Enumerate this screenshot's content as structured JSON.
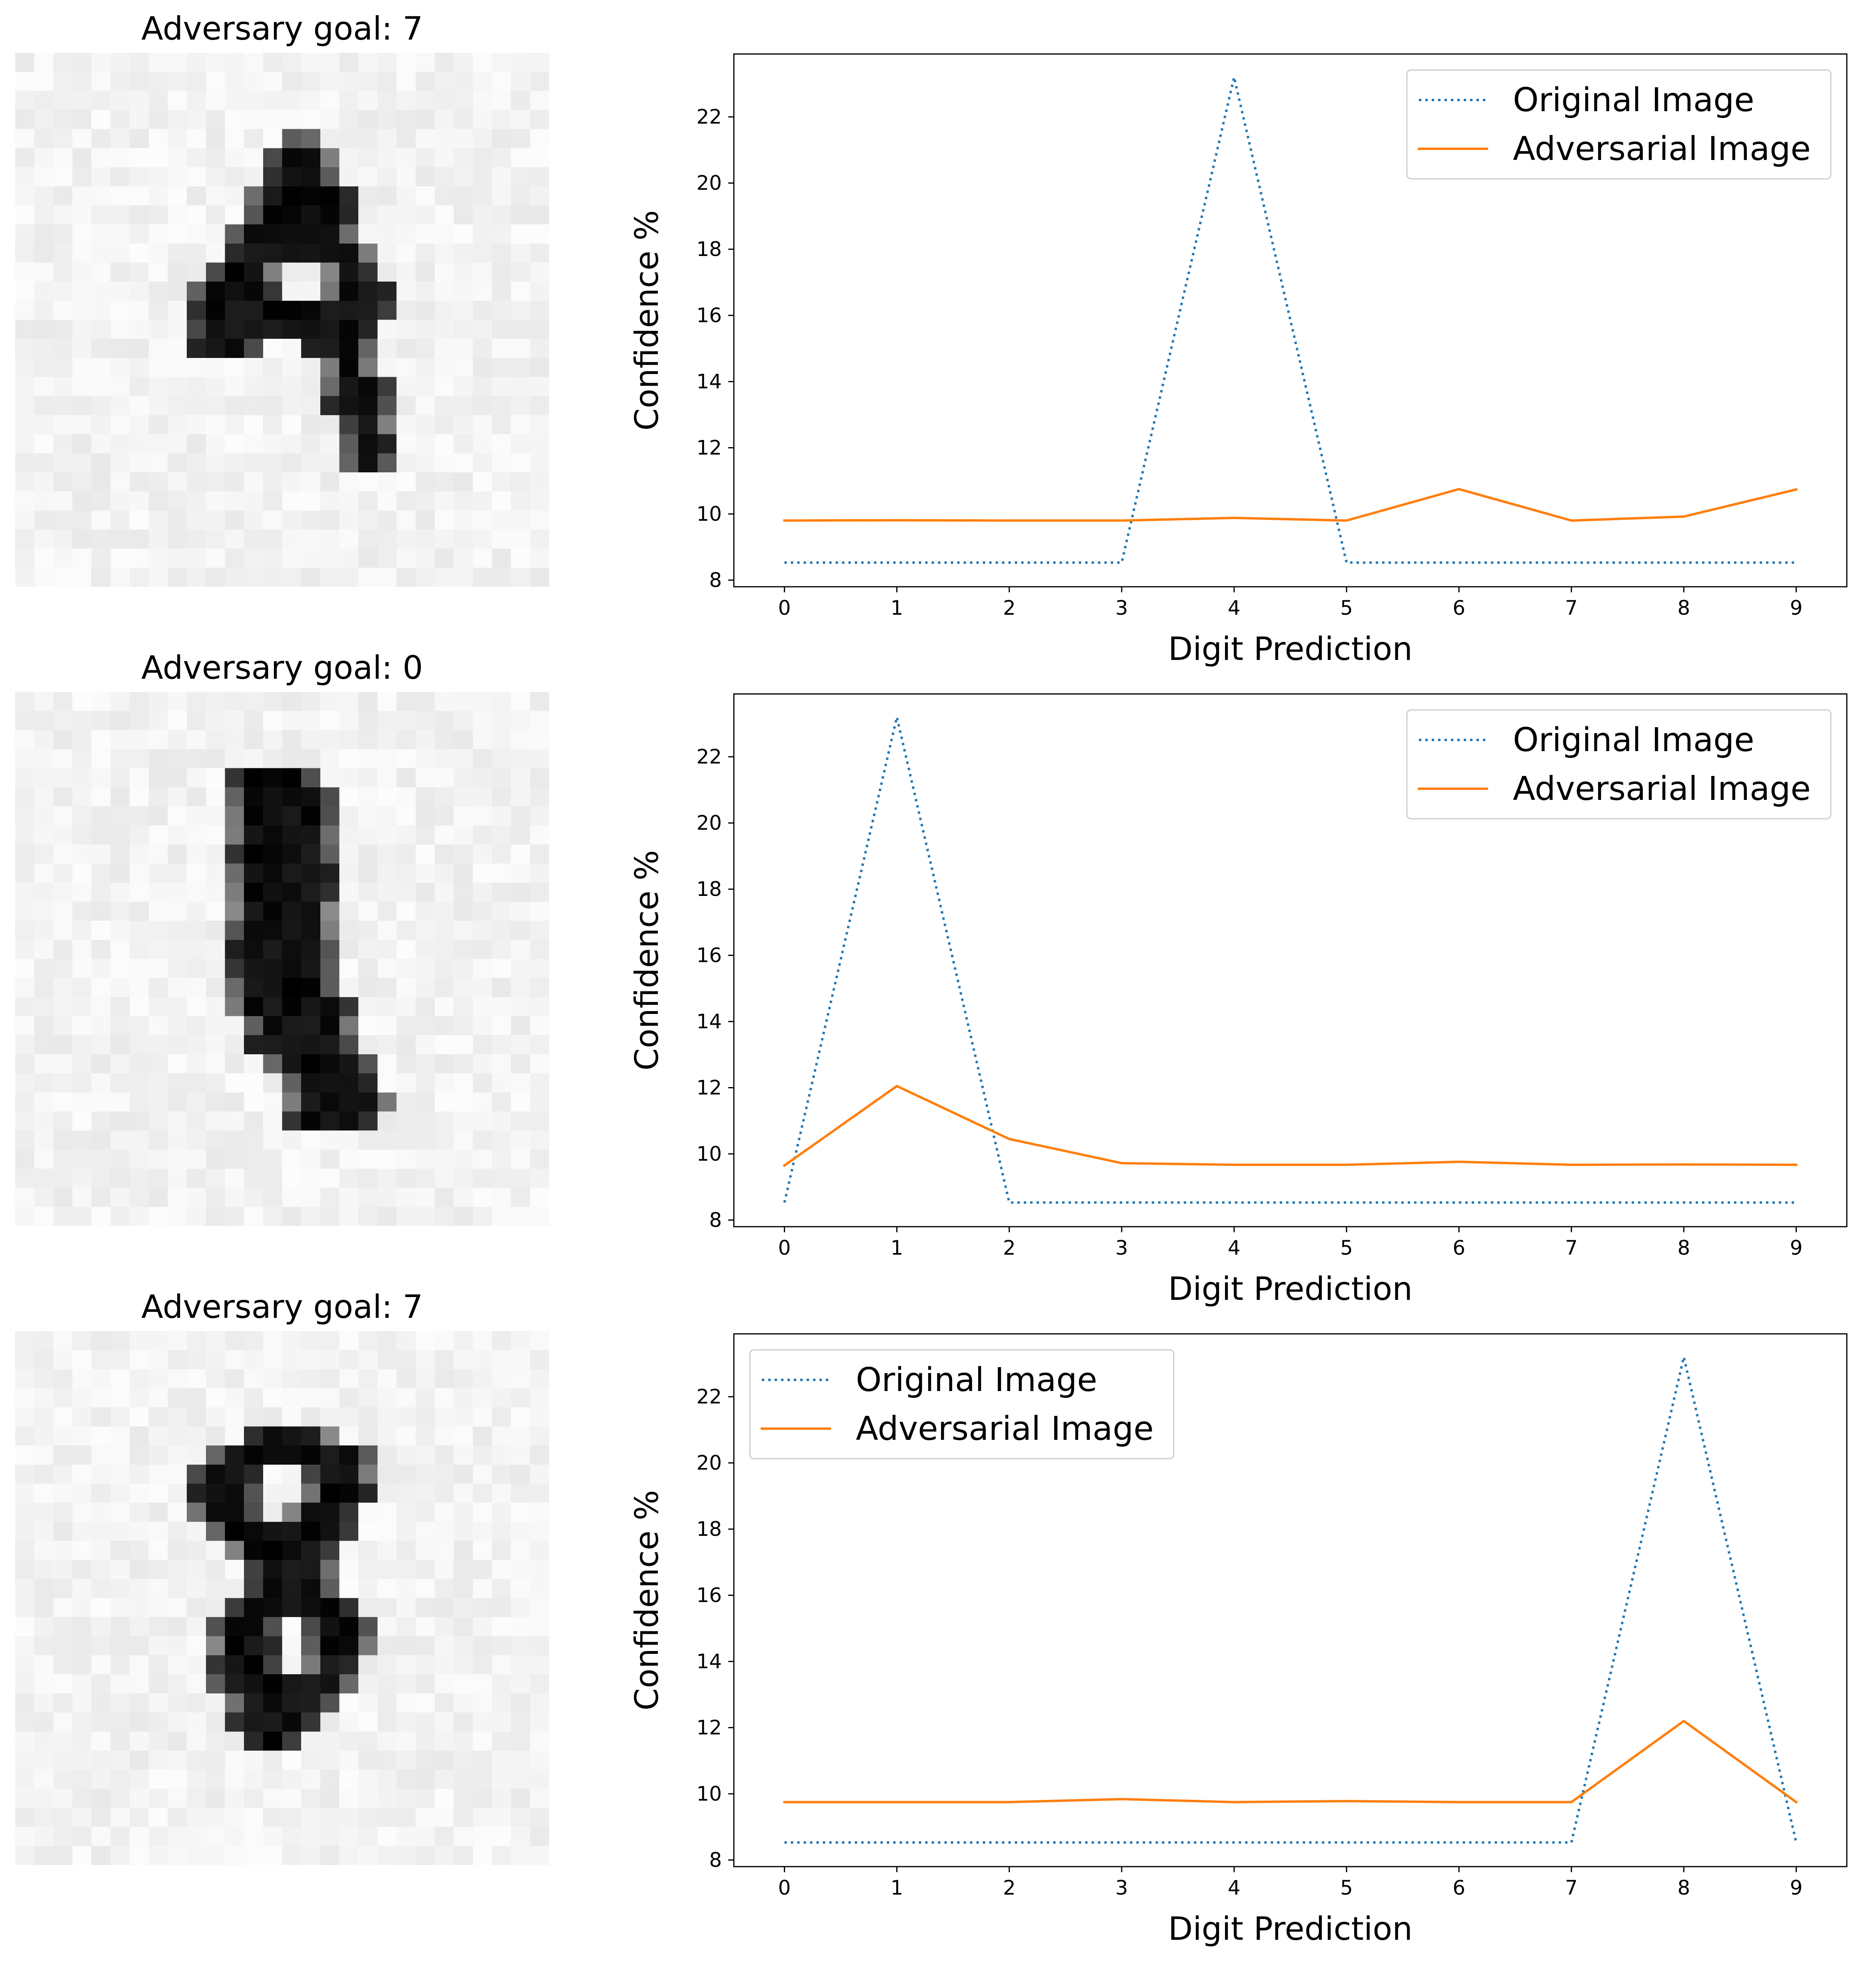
{
  "colors": {
    "original": "#1f77b4",
    "adversarial": "#ff7f0e",
    "axes": "#000000",
    "legend_border": "#cccccc"
  },
  "panels": [
    {
      "title": "Adversary goal: 7",
      "digit_shown": "4",
      "legend_position": "upper right"
    },
    {
      "title": "Adversary goal: 0",
      "digit_shown": "1",
      "legend_position": "upper right"
    },
    {
      "title": "Adversary goal: 7",
      "digit_shown": "8",
      "legend_position": "upper left"
    }
  ],
  "chart_data": [
    {
      "type": "line",
      "x": [
        0,
        1,
        2,
        3,
        4,
        5,
        6,
        7,
        8,
        9
      ],
      "xticks": [
        "0",
        "1",
        "2",
        "3",
        "4",
        "5",
        "6",
        "7",
        "8",
        "9"
      ],
      "yticks": [
        "8",
        "10",
        "12",
        "14",
        "16",
        "18",
        "20",
        "22"
      ],
      "xlabel": "Digit Prediction",
      "ylabel": "Confidence %",
      "xlim": [
        -0.45,
        9.45
      ],
      "ylim": [
        7.8,
        23.9
      ],
      "grid": false,
      "legend": "top-right",
      "series": [
        {
          "name": "Original Image",
          "style": "dotted",
          "values": [
            8.53,
            8.53,
            8.53,
            8.53,
            23.2,
            8.53,
            8.53,
            8.53,
            8.53,
            8.53
          ]
        },
        {
          "name": "Adversarial Image",
          "style": "solid",
          "values": [
            9.8,
            9.81,
            9.8,
            9.8,
            9.88,
            9.8,
            10.75,
            9.8,
            9.92,
            10.74
          ]
        }
      ]
    },
    {
      "type": "line",
      "x": [
        0,
        1,
        2,
        3,
        4,
        5,
        6,
        7,
        8,
        9
      ],
      "xticks": [
        "0",
        "1",
        "2",
        "3",
        "4",
        "5",
        "6",
        "7",
        "8",
        "9"
      ],
      "yticks": [
        "8",
        "10",
        "12",
        "14",
        "16",
        "18",
        "20",
        "22"
      ],
      "xlabel": "Digit Prediction",
      "ylabel": "Confidence %",
      "xlim": [
        -0.45,
        9.45
      ],
      "ylim": [
        7.8,
        23.9
      ],
      "grid": false,
      "legend": "top-right",
      "series": [
        {
          "name": "Original Image",
          "style": "dotted",
          "values": [
            8.53,
            23.2,
            8.53,
            8.53,
            8.53,
            8.53,
            8.53,
            8.53,
            8.53,
            8.53
          ]
        },
        {
          "name": "Adversarial Image",
          "style": "solid",
          "values": [
            9.65,
            12.05,
            10.45,
            9.72,
            9.67,
            9.67,
            9.76,
            9.67,
            9.68,
            9.67
          ]
        }
      ]
    },
    {
      "type": "line",
      "x": [
        0,
        1,
        2,
        3,
        4,
        5,
        6,
        7,
        8,
        9
      ],
      "xticks": [
        "0",
        "1",
        "2",
        "3",
        "4",
        "5",
        "6",
        "7",
        "8",
        "9"
      ],
      "yticks": [
        "8",
        "10",
        "12",
        "14",
        "16",
        "18",
        "20",
        "22"
      ],
      "xlabel": "Digit Prediction",
      "ylabel": "Confidence %",
      "xlim": [
        -0.45,
        9.45
      ],
      "ylim": [
        7.8,
        23.9
      ],
      "grid": false,
      "legend": "top-left",
      "series": [
        {
          "name": "Original Image",
          "style": "dotted",
          "values": [
            8.53,
            8.53,
            8.53,
            8.53,
            8.53,
            8.53,
            8.53,
            8.53,
            23.2,
            8.53
          ]
        },
        {
          "name": "Adversarial Image",
          "style": "solid",
          "values": [
            9.75,
            9.75,
            9.75,
            9.84,
            9.75,
            9.78,
            9.75,
            9.75,
            12.2,
            9.75
          ]
        }
      ]
    }
  ]
}
